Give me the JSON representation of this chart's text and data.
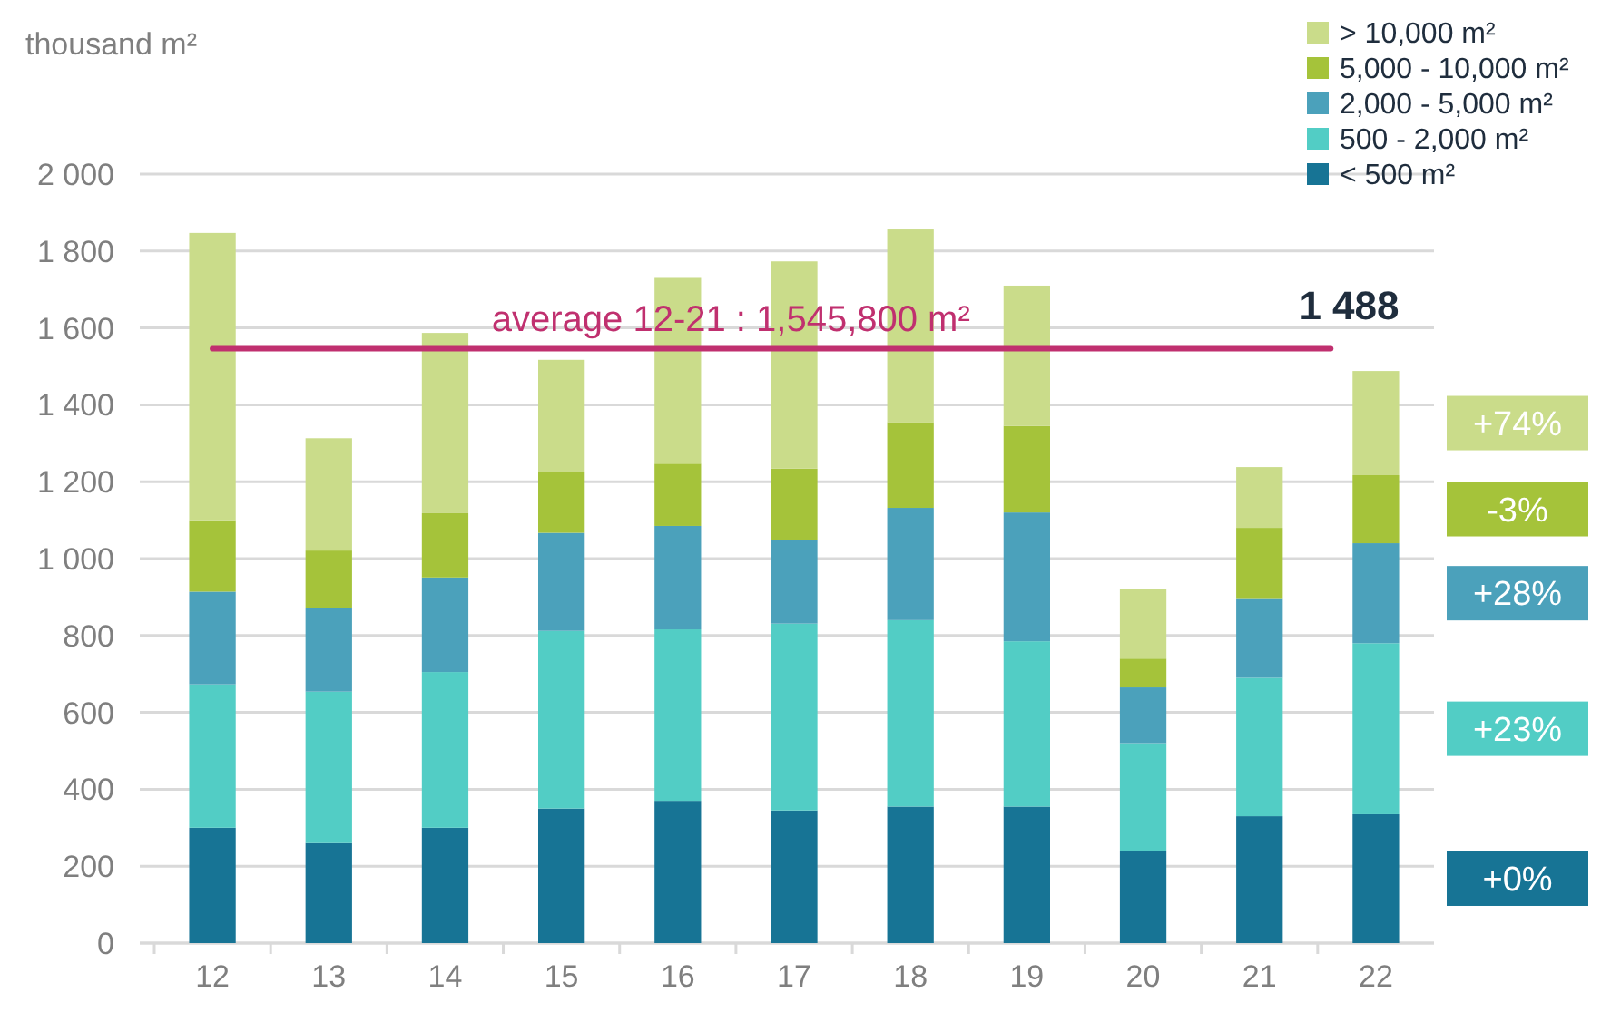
{
  "chart_data": {
    "type": "bar",
    "stacked": true,
    "ylabel": "thousand m²",
    "categories": [
      "12",
      "13",
      "14",
      "15",
      "16",
      "17",
      "18",
      "19",
      "20",
      "21",
      "22"
    ],
    "series": [
      {
        "name": "< 500 m²",
        "color": "#177495",
        "values": [
          300,
          260,
          300,
          350,
          370,
          345,
          355,
          355,
          240,
          330,
          335
        ]
      },
      {
        "name": "500 - 2,000 m²",
        "color": "#52cdc5",
        "values": [
          373,
          394,
          405,
          462,
          446,
          486,
          485,
          430,
          280,
          360,
          445
        ]
      },
      {
        "name": "2,000 - 5,000 m²",
        "color": "#4ba1bb",
        "values": [
          241,
          218,
          246,
          255,
          269,
          218,
          292,
          335,
          145,
          205,
          260
        ]
      },
      {
        "name": "5,000 - 10,000 m²",
        "color": "#a5c33a",
        "values": [
          186,
          149,
          167,
          158,
          162,
          185,
          223,
          225,
          75,
          185,
          177
        ]
      },
      {
        "name": "> 10,000 m²",
        "color": "#cadc8a",
        "values": [
          747,
          292,
          469,
          292,
          483,
          539,
          501,
          365,
          180,
          158,
          271
        ]
      }
    ],
    "ylim": [
      0,
      2000
    ],
    "yticks": [
      0,
      200,
      400,
      600,
      800,
      {
        "value": 1000,
        "label": "1 000"
      },
      {
        "value": 1200,
        "label": "1 200"
      },
      {
        "value": 1400,
        "label": "1 400"
      },
      {
        "value": 1600,
        "label": "1 600"
      },
      {
        "value": 1800,
        "label": "1 800"
      },
      {
        "value": 2000,
        "label": "2 000"
      }
    ],
    "grid": "y",
    "legend": "top right",
    "totals": [
      null,
      null,
      null,
      null,
      null,
      null,
      null,
      null,
      null,
      null,
      "1 488"
    ],
    "ref_lines": [
      {
        "axis": "y",
        "value": 1545.8,
        "label": "average 12-21 : 1,545,800 m²",
        "color": "#c0306f"
      }
    ],
    "annotations": [
      "+74%",
      "-3%",
      "+28%",
      "+23%",
      "+0%"
    ]
  }
}
